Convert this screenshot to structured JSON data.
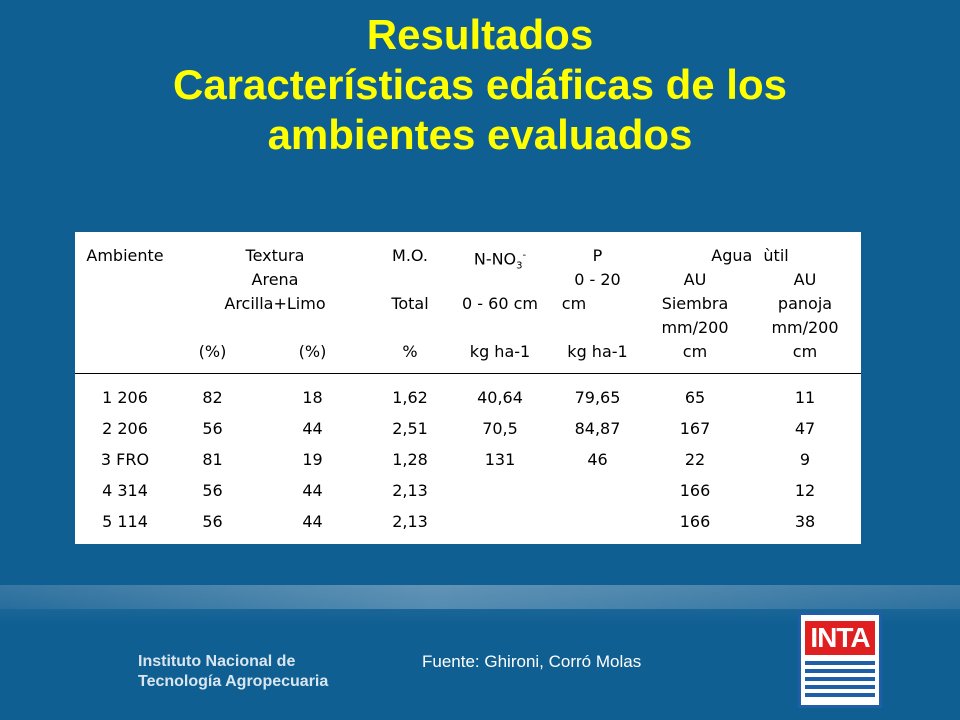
{
  "title": {
    "line1": "Resultados",
    "line2": "Características edáficas de los",
    "line3": "ambientes evaluados"
  },
  "table": {
    "header": {
      "ambiente": "Ambiente",
      "textura": "Textura",
      "arena": "Arena",
      "arcilla_limo": "Arcilla+Limo",
      "unit_pct1": "(%)",
      "unit_pct2": "(%)",
      "mo": "M.O.",
      "mo_total": "Total",
      "mo_unit": "%",
      "nno3_base": "N-NO",
      "nno3_sub": "3",
      "nno3_sup": "-",
      "nno3_depth": "0 - 60 cm",
      "nno3_unit": "kg ha-1",
      "p": "P",
      "p_depth_1": "0 - 20",
      "p_depth_2": "cm",
      "p_unit": "kg ha-1",
      "agua_util": "Agua ùtil",
      "au_siembra": [
        "AU",
        "Siembra",
        "mm/200",
        "cm"
      ],
      "au_panoja": [
        "AU",
        "panoja",
        "mm/200",
        "cm"
      ]
    },
    "rows": [
      [
        "1 206",
        "82",
        "18",
        "1,62",
        "40,64",
        "79,65",
        "65",
        "11"
      ],
      [
        "2 206",
        "56",
        "44",
        "2,51",
        "70,5",
        "84,87",
        "167",
        "47"
      ],
      [
        "3 FRO",
        "81",
        "19",
        "1,28",
        "131",
        "46",
        "22",
        "9"
      ],
      [
        "4 314",
        "56",
        "44",
        "2,13",
        "",
        "",
        "166",
        "12"
      ],
      [
        "5 114",
        "56",
        "44",
        "2,13",
        "",
        "",
        "166",
        "38"
      ]
    ]
  },
  "footer": {
    "institute_line1": "Instituto Nacional de",
    "institute_line2": "Tecnología Agropecuaria",
    "source": "Fuente: Ghironi, Corró Molas",
    "logo_text": "INTA"
  }
}
